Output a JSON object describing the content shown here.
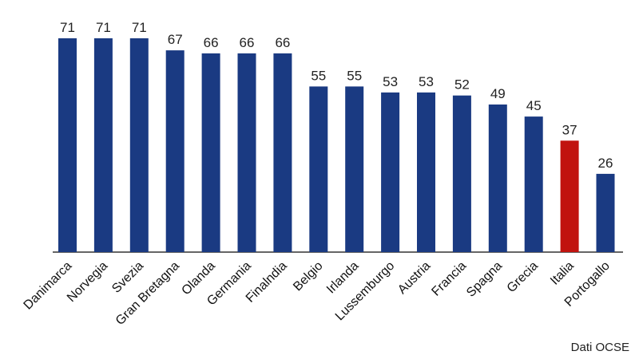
{
  "chart_data": {
    "type": "bar",
    "categories": [
      "Danimarca",
      "Norvegia",
      "Svezia",
      "Gran Bretagna",
      "Olanda",
      "Germania",
      "Finalndia",
      "Belgio",
      "Irlanda",
      "Lussemburgo",
      "Austria",
      "Francia",
      "Spagna",
      "Grecia",
      "Italia",
      "Portogallo"
    ],
    "values": [
      71,
      71,
      71,
      67,
      66,
      66,
      66,
      55,
      55,
      53,
      53,
      52,
      49,
      45,
      37,
      26
    ],
    "highlight_category": "Italia",
    "ylim": [
      0,
      71
    ],
    "grid": false,
    "colors": {
      "bar": "#1a3a82",
      "highlight": "#c1130f"
    }
  },
  "source_note": "Dati OCSE"
}
